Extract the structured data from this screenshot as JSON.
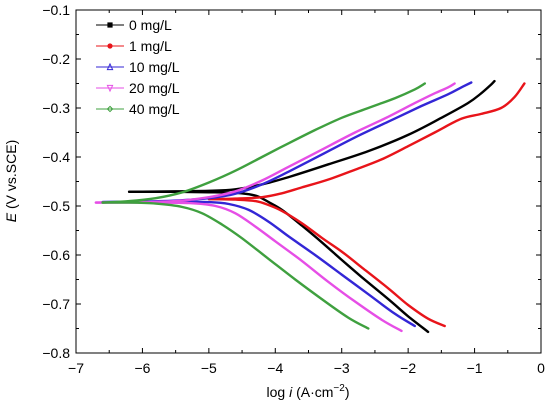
{
  "chart_data": {
    "type": "line",
    "xlabel_prefix": "log ",
    "xlabel_var": "i",
    "xlabel_unit": " (A·cm",
    "xlabel_exp": "−2",
    "xlabel_close": ")",
    "ylabel_var": "E",
    "ylabel_unit": " (V vs.SCE)",
    "xlim": [
      -7,
      0
    ],
    "ylim": [
      -0.8,
      -0.1
    ],
    "xticks": [
      -7,
      -6,
      -5,
      -4,
      -3,
      -2,
      -1,
      0
    ],
    "xtick_labels": [
      "−7",
      "−6",
      "−5",
      "−4",
      "−3",
      "−2",
      "−1",
      "0"
    ],
    "yticks": [
      -0.8,
      -0.7,
      -0.6,
      -0.5,
      -0.4,
      -0.3,
      -0.2,
      -0.1
    ],
    "ytick_labels": [
      "−0.8",
      "−0.7",
      "−0.6",
      "−0.5",
      "−0.4",
      "−0.3",
      "−0.2",
      "−0.1"
    ],
    "legend_position": "top-left",
    "series": [
      {
        "name": "0 mg/L",
        "color": "#000000",
        "marker": "square",
        "cathodic": [
          [
            -1.7,
            -0.757
          ],
          [
            -2.0,
            -0.725
          ],
          [
            -2.3,
            -0.69
          ],
          [
            -2.7,
            -0.645
          ],
          [
            -3.0,
            -0.61
          ],
          [
            -3.3,
            -0.574
          ],
          [
            -3.6,
            -0.54
          ],
          [
            -3.9,
            -0.508
          ],
          [
            -4.1,
            -0.492
          ],
          [
            -4.25,
            -0.481
          ],
          [
            -4.4,
            -0.476
          ],
          [
            -4.6,
            -0.473
          ],
          [
            -5.0,
            -0.472
          ],
          [
            -5.5,
            -0.471
          ],
          [
            -6.2,
            -0.471
          ]
        ],
        "anodic": [
          [
            -6.2,
            -0.471
          ],
          [
            -5.5,
            -0.47
          ],
          [
            -5.0,
            -0.469
          ],
          [
            -4.6,
            -0.466
          ],
          [
            -4.2,
            -0.456
          ],
          [
            -3.8,
            -0.441
          ],
          [
            -3.2,
            -0.415
          ],
          [
            -2.6,
            -0.388
          ],
          [
            -2.0,
            -0.355
          ],
          [
            -1.5,
            -0.32
          ],
          [
            -1.1,
            -0.29
          ],
          [
            -0.9,
            -0.27
          ],
          [
            -0.75,
            -0.252
          ],
          [
            -0.7,
            -0.245
          ]
        ]
      },
      {
        "name": "1 mg/L",
        "color": "#e8141a",
        "marker": "circle",
        "cathodic": [
          [
            -1.45,
            -0.745
          ],
          [
            -1.7,
            -0.73
          ],
          [
            -2.0,
            -0.702
          ],
          [
            -2.3,
            -0.668
          ],
          [
            -2.7,
            -0.625
          ],
          [
            -3.0,
            -0.593
          ],
          [
            -3.3,
            -0.565
          ],
          [
            -3.6,
            -0.535
          ],
          [
            -3.9,
            -0.51
          ],
          [
            -4.1,
            -0.498
          ],
          [
            -4.3,
            -0.49
          ],
          [
            -4.6,
            -0.487
          ],
          [
            -5.0,
            -0.486
          ]
        ],
        "anodic": [
          [
            -5.0,
            -0.486
          ],
          [
            -4.6,
            -0.485
          ],
          [
            -4.2,
            -0.482
          ],
          [
            -3.9,
            -0.474
          ],
          [
            -3.6,
            -0.462
          ],
          [
            -3.2,
            -0.446
          ],
          [
            -2.8,
            -0.426
          ],
          [
            -2.4,
            -0.405
          ],
          [
            -2.0,
            -0.378
          ],
          [
            -1.6,
            -0.35
          ],
          [
            -1.2,
            -0.322
          ],
          [
            -0.9,
            -0.312
          ],
          [
            -0.6,
            -0.3
          ],
          [
            -0.4,
            -0.278
          ],
          [
            -0.25,
            -0.25
          ]
        ]
      },
      {
        "name": "10 mg/L",
        "color": "#3326d6",
        "marker": "triangle",
        "cathodic": [
          [
            -1.9,
            -0.745
          ],
          [
            -2.2,
            -0.72
          ],
          [
            -2.6,
            -0.68
          ],
          [
            -3.0,
            -0.64
          ],
          [
            -3.4,
            -0.6
          ],
          [
            -3.8,
            -0.562
          ],
          [
            -4.1,
            -0.532
          ],
          [
            -4.4,
            -0.508
          ],
          [
            -4.7,
            -0.496
          ],
          [
            -5.0,
            -0.492
          ],
          [
            -5.5,
            -0.491
          ],
          [
            -6.0,
            -0.491
          ],
          [
            -6.6,
            -0.492
          ]
        ],
        "anodic": [
          [
            -6.6,
            -0.492
          ],
          [
            -6.0,
            -0.491
          ],
          [
            -5.5,
            -0.489
          ],
          [
            -5.0,
            -0.484
          ],
          [
            -4.6,
            -0.475
          ],
          [
            -4.2,
            -0.456
          ],
          [
            -3.8,
            -0.43
          ],
          [
            -3.3,
            -0.395
          ],
          [
            -2.8,
            -0.36
          ],
          [
            -2.3,
            -0.328
          ],
          [
            -1.8,
            -0.296
          ],
          [
            -1.4,
            -0.272
          ],
          [
            -1.2,
            -0.258
          ],
          [
            -1.05,
            -0.248
          ]
        ]
      },
      {
        "name": "20 mg/L",
        "color": "#e64ee6",
        "marker": "triangle-down",
        "cathodic": [
          [
            -2.1,
            -0.755
          ],
          [
            -2.4,
            -0.732
          ],
          [
            -2.8,
            -0.695
          ],
          [
            -3.2,
            -0.655
          ],
          [
            -3.6,
            -0.612
          ],
          [
            -4.0,
            -0.572
          ],
          [
            -4.3,
            -0.542
          ],
          [
            -4.6,
            -0.515
          ],
          [
            -4.9,
            -0.5
          ],
          [
            -5.3,
            -0.494
          ],
          [
            -5.8,
            -0.493
          ],
          [
            -6.7,
            -0.493
          ]
        ],
        "anodic": [
          [
            -6.7,
            -0.493
          ],
          [
            -6.0,
            -0.492
          ],
          [
            -5.5,
            -0.49
          ],
          [
            -5.0,
            -0.482
          ],
          [
            -4.6,
            -0.47
          ],
          [
            -4.2,
            -0.448
          ],
          [
            -3.8,
            -0.42
          ],
          [
            -3.3,
            -0.385
          ],
          [
            -2.8,
            -0.35
          ],
          [
            -2.3,
            -0.318
          ],
          [
            -1.9,
            -0.29
          ],
          [
            -1.6,
            -0.27
          ],
          [
            -1.4,
            -0.258
          ],
          [
            -1.3,
            -0.25
          ]
        ]
      },
      {
        "name": "40 mg/L",
        "color": "#3fa03f",
        "marker": "diamond",
        "cathodic": [
          [
            -2.6,
            -0.75
          ],
          [
            -2.9,
            -0.728
          ],
          [
            -3.3,
            -0.69
          ],
          [
            -3.7,
            -0.65
          ],
          [
            -4.1,
            -0.608
          ],
          [
            -4.5,
            -0.566
          ],
          [
            -4.8,
            -0.538
          ],
          [
            -5.1,
            -0.515
          ],
          [
            -5.4,
            -0.502
          ],
          [
            -5.8,
            -0.495
          ],
          [
            -6.2,
            -0.493
          ],
          [
            -6.6,
            -0.493
          ]
        ],
        "anodic": [
          [
            -6.6,
            -0.493
          ],
          [
            -6.2,
            -0.49
          ],
          [
            -5.8,
            -0.484
          ],
          [
            -5.4,
            -0.472
          ],
          [
            -5.0,
            -0.452
          ],
          [
            -4.6,
            -0.428
          ],
          [
            -4.2,
            -0.4
          ],
          [
            -3.8,
            -0.372
          ],
          [
            -3.4,
            -0.345
          ],
          [
            -3.0,
            -0.32
          ],
          [
            -2.6,
            -0.3
          ],
          [
            -2.2,
            -0.28
          ],
          [
            -1.9,
            -0.262
          ],
          [
            -1.75,
            -0.25
          ]
        ]
      }
    ]
  }
}
